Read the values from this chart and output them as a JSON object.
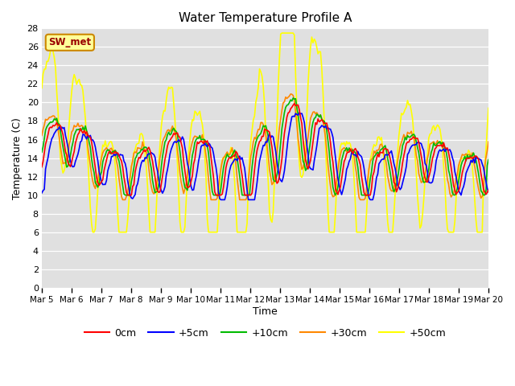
{
  "title": "Water Temperature Profile A",
  "xlabel": "Time",
  "ylabel": "Temperature (C)",
  "ylim": [
    0,
    28
  ],
  "yticks": [
    0,
    2,
    4,
    6,
    8,
    10,
    12,
    14,
    16,
    18,
    20,
    22,
    24,
    26,
    28
  ],
  "x_labels": [
    "Mar 5",
    "Mar 6",
    "Mar 7",
    "Mar 8",
    "Mar 9",
    "Mar 10",
    "Mar 11",
    "Mar 12",
    "Mar 13",
    "Mar 14",
    "Mar 15",
    "Mar 16",
    "Mar 17",
    "Mar 18",
    "Mar 19",
    "Mar 20"
  ],
  "annotation_text": "SW_met",
  "annotation_color": "#990000",
  "annotation_bg": "#ffff99",
  "annotation_border": "#cc8800",
  "series_colors": [
    "#ff0000",
    "#0000ff",
    "#00bb00",
    "#ff8800",
    "#ffff00"
  ],
  "series_labels": [
    "0cm",
    "+5cm",
    "+10cm",
    "+30cm",
    "+50cm"
  ],
  "plot_bg": "#e0e0e0",
  "grid_color": "#ffffff",
  "n_points": 360
}
